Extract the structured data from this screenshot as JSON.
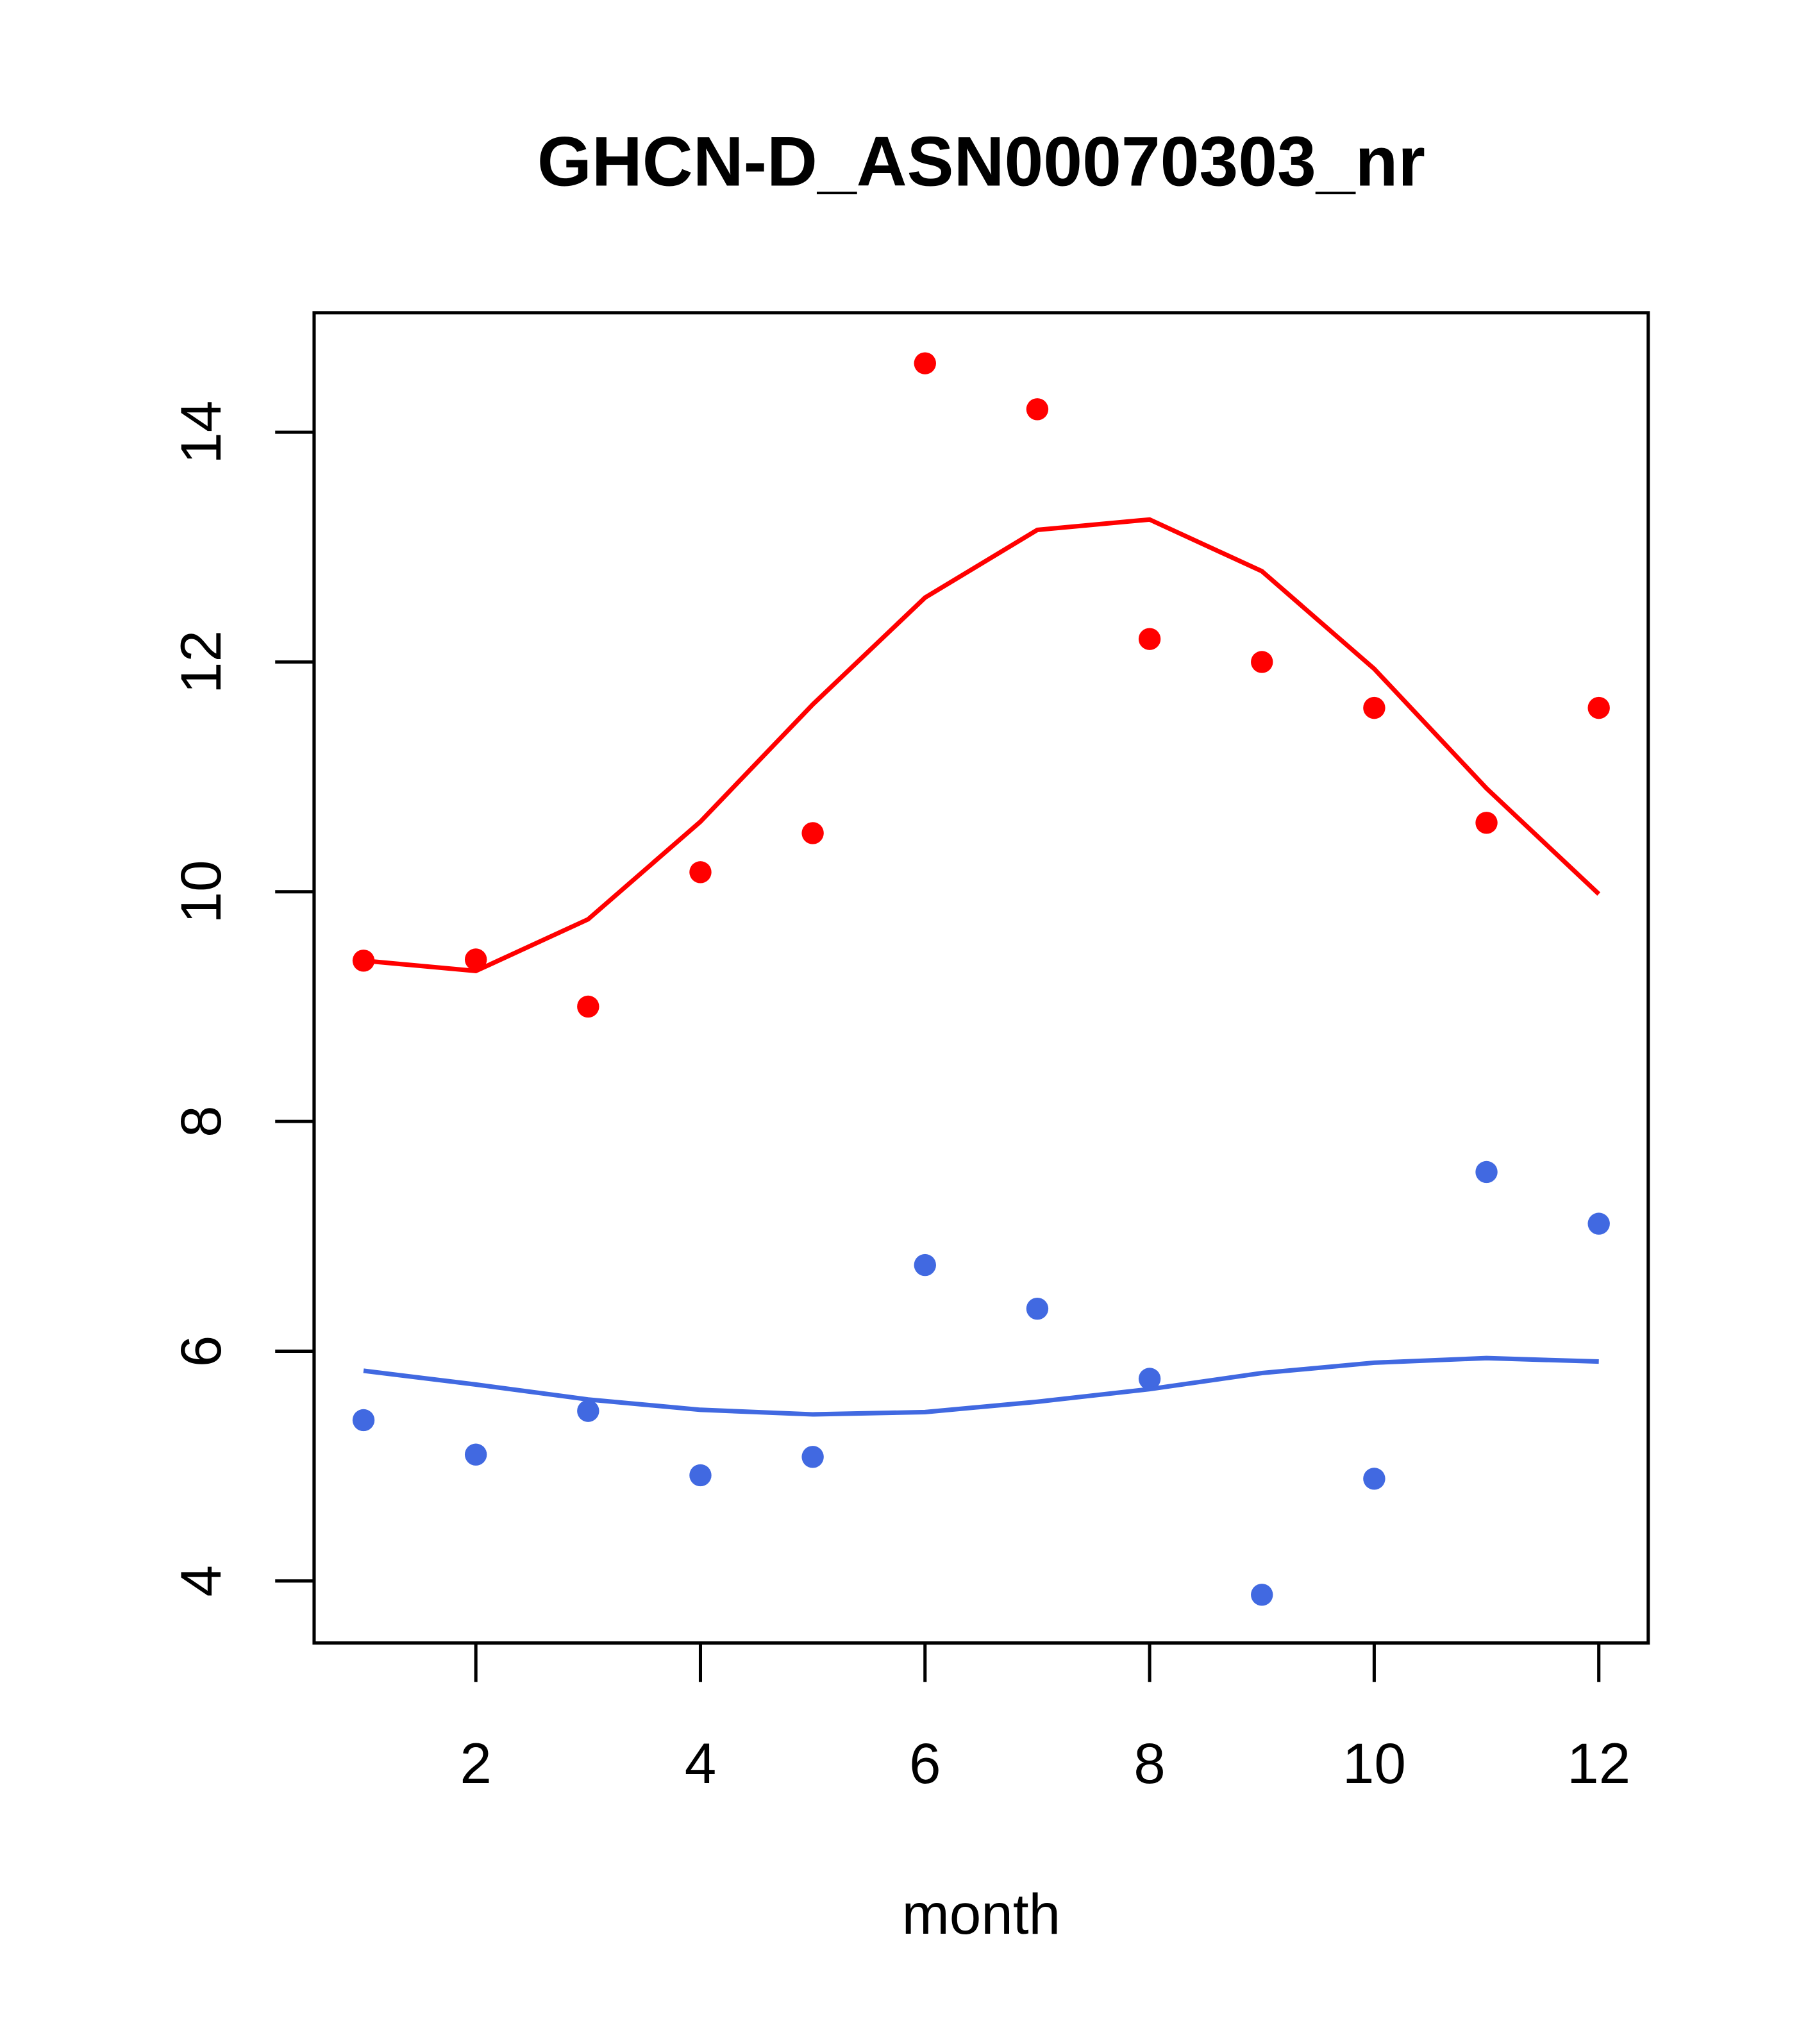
{
  "chart_data": {
    "type": "scatter",
    "title": "GHCN-D_ASN00070303_nr",
    "xlabel": "month",
    "ylabel": "",
    "xlim": [
      0.56,
      12.44
    ],
    "ylim": [
      3.46,
      15.04
    ],
    "xticks": [
      2,
      4,
      6,
      8,
      10,
      12
    ],
    "yticks": [
      4,
      6,
      8,
      10,
      12,
      14
    ],
    "grid": false,
    "x": [
      1,
      2,
      3,
      4,
      5,
      6,
      7,
      8,
      9,
      10,
      11,
      12
    ],
    "series": [
      {
        "name": "red-points",
        "kind": "points",
        "color": "#ff0000",
        "values": [
          9.4,
          9.41,
          9.0,
          10.17,
          10.51,
          14.6,
          14.2,
          12.2,
          12.0,
          11.6,
          10.6,
          11.6
        ]
      },
      {
        "name": "red-line",
        "kind": "line",
        "color": "#ff0000",
        "values": [
          9.4,
          9.31,
          9.76,
          10.61,
          11.63,
          12.56,
          13.15,
          13.24,
          12.79,
          11.94,
          10.9,
          9.98
        ]
      },
      {
        "name": "blue-points",
        "kind": "points",
        "color": "#4169e1",
        "values": [
          5.4,
          5.1,
          5.48,
          4.92,
          5.08,
          6.75,
          6.37,
          5.76,
          3.88,
          4.89,
          7.56,
          7.11
        ]
      },
      {
        "name": "blue-line",
        "kind": "line",
        "color": "#4169e1",
        "values": [
          5.83,
          5.71,
          5.58,
          5.49,
          5.45,
          5.47,
          5.56,
          5.67,
          5.81,
          5.9,
          5.94,
          5.91
        ]
      }
    ]
  }
}
